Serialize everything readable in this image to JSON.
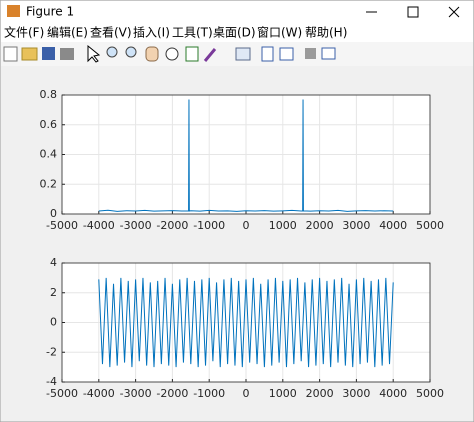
{
  "window": {
    "title": "Figure 1",
    "menu": [
      "文件(F)",
      "编辑(E)",
      "查看(V)",
      "插入(I)",
      "工具(T)",
      "桌面(D)",
      "窗口(W)",
      "帮助(H)"
    ]
  },
  "chart_data": [
    {
      "type": "line",
      "color": "#0072bd",
      "grid": true,
      "xlim": [
        -5000,
        5000
      ],
      "xticks": [
        -5000,
        -4000,
        -3000,
        -2000,
        -1000,
        0,
        1000,
        2000,
        3000,
        4000,
        5000
      ],
      "ylim": [
        0,
        0.8
      ],
      "yticks": [
        0,
        0.2,
        0.4,
        0.6,
        0.8
      ],
      "x": [
        -4000,
        -3750,
        -3500,
        -3250,
        -3000,
        -2750,
        -2500,
        -2250,
        -2000,
        -1750,
        -1560,
        -1550,
        -1540,
        -1500,
        -1250,
        -1000,
        -750,
        -500,
        -250,
        0,
        250,
        500,
        750,
        1000,
        1250,
        1500,
        1540,
        1550,
        1560,
        1750,
        2000,
        2250,
        2500,
        2750,
        3000,
        3250,
        3500,
        3750,
        4000
      ],
      "values": [
        0.02,
        0.025,
        0.018,
        0.022,
        0.02,
        0.024,
        0.019,
        0.021,
        0.023,
        0.02,
        0.02,
        0.77,
        0.02,
        0.022,
        0.019,
        0.024,
        0.02,
        0.021,
        0.018,
        0.022,
        0.02,
        0.023,
        0.019,
        0.021,
        0.024,
        0.02,
        0.02,
        0.77,
        0.021,
        0.019,
        0.022,
        0.02,
        0.024,
        0.018,
        0.021,
        0.023,
        0.02,
        0.022,
        0.02
      ]
    },
    {
      "type": "line",
      "color": "#0072bd",
      "grid": true,
      "xlim": [
        -5000,
        5000
      ],
      "xticks": [
        -5000,
        -4000,
        -3000,
        -2000,
        -1000,
        0,
        1000,
        2000,
        3000,
        4000,
        5000
      ],
      "ylim": [
        -4,
        4
      ],
      "yticks": [
        -4,
        -2,
        0,
        2,
        4
      ],
      "x": [
        -4000,
        -3900,
        -3800,
        -3700,
        -3600,
        -3500,
        -3400,
        -3300,
        -3200,
        -3100,
        -3000,
        -2900,
        -2800,
        -2700,
        -2600,
        -2500,
        -2400,
        -2300,
        -2200,
        -2100,
        -2000,
        -1900,
        -1800,
        -1700,
        -1600,
        -1500,
        -1400,
        -1300,
        -1200,
        -1100,
        -1000,
        -900,
        -800,
        -700,
        -600,
        -500,
        -400,
        -300,
        -200,
        -100,
        0,
        100,
        200,
        300,
        400,
        500,
        600,
        700,
        800,
        900,
        1000,
        1100,
        1200,
        1300,
        1400,
        1500,
        1600,
        1700,
        1800,
        1900,
        2000,
        2100,
        2200,
        2300,
        2400,
        2500,
        2600,
        2700,
        2800,
        2900,
        3000,
        3100,
        3200,
        3300,
        3400,
        3500,
        3600,
        3700,
        3800,
        3900,
        4000
      ],
      "values": [
        2.9,
        -2.8,
        3.0,
        -3.0,
        2.6,
        -2.9,
        3.0,
        -2.7,
        2.8,
        -3.0,
        2.9,
        -2.6,
        3.0,
        -2.9,
        2.7,
        -3.0,
        2.8,
        -2.8,
        3.0,
        -2.9,
        2.6,
        -3.0,
        2.9,
        -2.7,
        3.0,
        -2.8,
        2.8,
        -3.0,
        2.9,
        -2.9,
        3.0,
        -2.6,
        2.7,
        -3.0,
        2.9,
        -2.8,
        3.0,
        -2.9,
        2.8,
        -3.0,
        2.9,
        -2.7,
        3.0,
        -2.8,
        2.6,
        -3.0,
        2.9,
        -2.9,
        3.0,
        -2.7,
        2.8,
        -3.0,
        2.9,
        -2.8,
        3.0,
        -2.6,
        2.7,
        -3.0,
        2.9,
        -2.9,
        3.0,
        -2.8,
        2.8,
        -3.0,
        2.9,
        -2.7,
        3.0,
        -2.9,
        2.6,
        -3.0,
        2.9,
        -2.8,
        3.0,
        -2.7,
        2.8,
        -3.0,
        2.9,
        -2.9,
        3.0,
        -2.8,
        2.7
      ]
    }
  ]
}
